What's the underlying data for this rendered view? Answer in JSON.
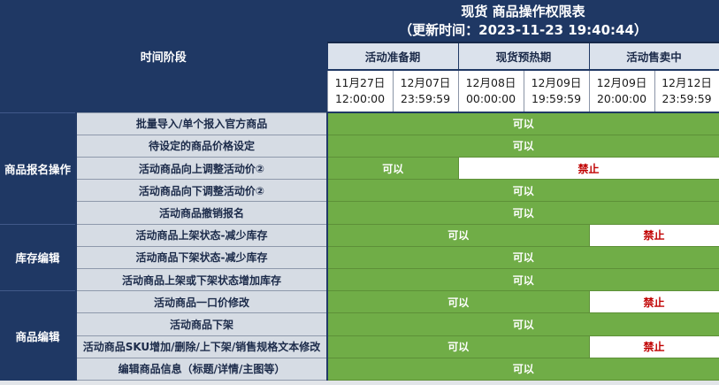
{
  "table": {
    "title": "现货 商品操作权限表",
    "subtitle": "（更新时间：2023-11-23 19:40:44）",
    "stage_header": "时间阶段",
    "periods": [
      {
        "label": "活动准备期",
        "span": 2
      },
      {
        "label": "现货预热期",
        "span": 2
      },
      {
        "label": "活动售卖中",
        "span": 2
      }
    ],
    "time_slots": [
      {
        "date": "11月27日",
        "time": "12:00:00"
      },
      {
        "date": "12月07日",
        "time": "23:59:59"
      },
      {
        "date": "12月08日",
        "time": "00:00:00"
      },
      {
        "date": "12月09日",
        "time": "19:59:59"
      },
      {
        "date": "12月09日",
        "time": "20:00:00"
      },
      {
        "date": "12月12日",
        "time": "23:59:59"
      }
    ],
    "groups": [
      {
        "label": "商品报名操作",
        "rows": [
          {
            "label": "批量导入/单个报入官方商品",
            "cells": [
              {
                "text": "可以",
                "span": 6,
                "status": "allowed"
              }
            ]
          },
          {
            "label": "待设定的商品价格设定",
            "cells": [
              {
                "text": "可以",
                "span": 6,
                "status": "allowed"
              }
            ]
          },
          {
            "label": "活动商品向上调整活动价②",
            "cells": [
              {
                "text": "可以",
                "span": 2,
                "status": "allowed"
              },
              {
                "text": "禁止",
                "span": 4,
                "status": "forbidden"
              }
            ]
          },
          {
            "label": "活动商品向下调整活动价②",
            "cells": [
              {
                "text": "可以",
                "span": 6,
                "status": "allowed"
              }
            ]
          },
          {
            "label": "活动商品撤销报名",
            "cells": [
              {
                "text": "可以",
                "span": 6,
                "status": "allowed"
              }
            ]
          }
        ]
      },
      {
        "label": "库存编辑",
        "rows": [
          {
            "label": "活动商品上架状态-减少库存",
            "cells": [
              {
                "text": "可以",
                "span": 4,
                "status": "allowed"
              },
              {
                "text": "禁止",
                "span": 2,
                "status": "forbidden"
              }
            ]
          },
          {
            "label": "活动商品下架状态-减少库存",
            "cells": [
              {
                "text": "可以",
                "span": 6,
                "status": "allowed"
              }
            ]
          },
          {
            "label": "活动商品上架或下架状态增加库存",
            "cells": [
              {
                "text": "可以",
                "span": 6,
                "status": "allowed"
              }
            ]
          }
        ]
      },
      {
        "label": "商品编辑",
        "rows": [
          {
            "label": "活动商品一口价修改",
            "cells": [
              {
                "text": "可以",
                "span": 4,
                "status": "allowed"
              },
              {
                "text": "禁止",
                "span": 2,
                "status": "forbidden"
              }
            ]
          },
          {
            "label": "活动商品下架",
            "cells": [
              {
                "text": "可以",
                "span": 6,
                "status": "allowed"
              }
            ]
          },
          {
            "label": "活动商品SKU增加/删除/上下架/销售规格文本修改",
            "cells": [
              {
                "text": "可以",
                "span": 4,
                "status": "allowed"
              },
              {
                "text": "禁止",
                "span": 2,
                "status": "forbidden"
              }
            ]
          },
          {
            "label": "编辑商品信息（标题/详情/主图等）",
            "cells": [
              {
                "text": "可以",
                "span": 6,
                "status": "allowed"
              }
            ]
          }
        ]
      }
    ]
  },
  "colors": {
    "header_navy": "#1f3864",
    "label_bg": "#d6dce4",
    "period_bg": "#dbe2ec",
    "allowed_green": "#70ad47",
    "forbidden_red": "#c00000",
    "white": "#ffffff"
  }
}
